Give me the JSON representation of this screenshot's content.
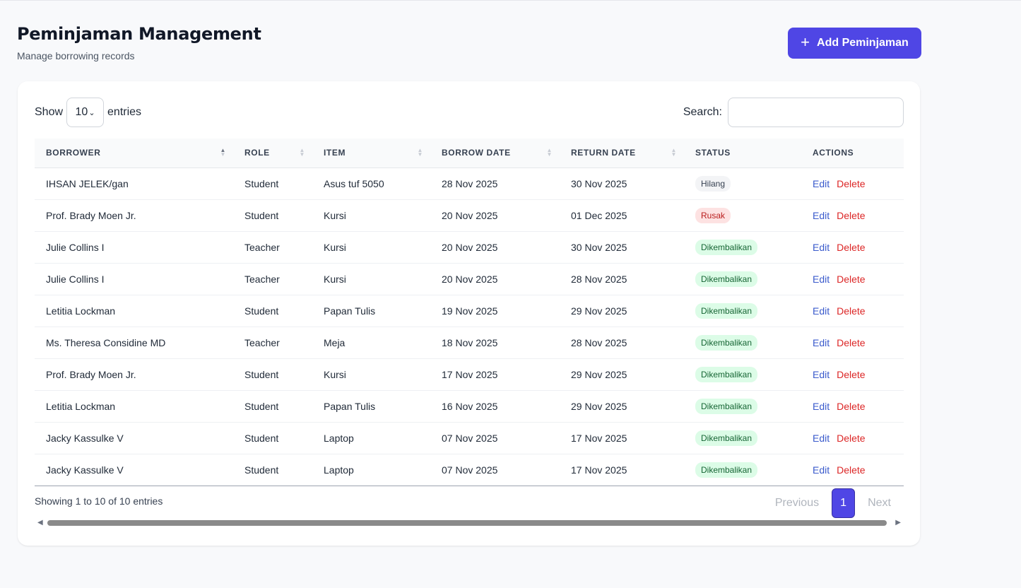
{
  "page": {
    "title": "Peminjaman Management",
    "subtitle": "Manage borrowing records",
    "add_button_label": "Add Peminjaman",
    "add_button_icon": "plus-icon"
  },
  "controls": {
    "show_label": "Show",
    "entries_value": "10",
    "entries_label": "entries",
    "search_label": "Search:",
    "search_value": ""
  },
  "table": {
    "columns": [
      "BORROWER",
      "ROLE",
      "ITEM",
      "BORROW DATE",
      "RETURN DATE",
      "STATUS",
      "ACTIONS"
    ],
    "sorted_column": "BORROWER",
    "sort_direction": "ascending",
    "rows": [
      {
        "borrower": "IHSAN JELEK/gan",
        "role": "Student",
        "item": "Asus tuf 5050",
        "borrow_date": "28 Nov 2025",
        "return_date": "30 Nov 2025",
        "status": "Hilang",
        "edit": "Edit",
        "delete": "Delete"
      },
      {
        "borrower": "Prof. Brady Moen Jr.",
        "role": "Student",
        "item": "Kursi",
        "borrow_date": "20 Nov 2025",
        "return_date": "01 Dec 2025",
        "status": "Rusak",
        "edit": "Edit",
        "delete": "Delete"
      },
      {
        "borrower": "Julie Collins I",
        "role": "Teacher",
        "item": "Kursi",
        "borrow_date": "20 Nov 2025",
        "return_date": "30 Nov 2025",
        "status": "Dikembalikan",
        "edit": "Edit",
        "delete": "Delete"
      },
      {
        "borrower": "Julie Collins I",
        "role": "Teacher",
        "item": "Kursi",
        "borrow_date": "20 Nov 2025",
        "return_date": "28 Nov 2025",
        "status": "Dikembalikan",
        "edit": "Edit",
        "delete": "Delete"
      },
      {
        "borrower": "Letitia Lockman",
        "role": "Student",
        "item": "Papan Tulis",
        "borrow_date": "19 Nov 2025",
        "return_date": "29 Nov 2025",
        "status": "Dikembalikan",
        "edit": "Edit",
        "delete": "Delete"
      },
      {
        "borrower": "Ms. Theresa Considine MD",
        "role": "Teacher",
        "item": "Meja",
        "borrow_date": "18 Nov 2025",
        "return_date": "28 Nov 2025",
        "status": "Dikembalikan",
        "edit": "Edit",
        "delete": "Delete"
      },
      {
        "borrower": "Prof. Brady Moen Jr.",
        "role": "Student",
        "item": "Kursi",
        "borrow_date": "17 Nov 2025",
        "return_date": "29 Nov 2025",
        "status": "Dikembalikan",
        "edit": "Edit",
        "delete": "Delete"
      },
      {
        "borrower": "Letitia Lockman",
        "role": "Student",
        "item": "Papan Tulis",
        "borrow_date": "16 Nov 2025",
        "return_date": "29 Nov 2025",
        "status": "Dikembalikan",
        "edit": "Edit",
        "delete": "Delete"
      },
      {
        "borrower": "Jacky Kassulke V",
        "role": "Student",
        "item": "Laptop",
        "borrow_date": "07 Nov 2025",
        "return_date": "17 Nov 2025",
        "status": "Dikembalikan",
        "edit": "Edit",
        "delete": "Delete"
      },
      {
        "borrower": "Jacky Kassulke V",
        "role": "Student",
        "item": "Laptop",
        "borrow_date": "07 Nov 2025",
        "return_date": "17 Nov 2025",
        "status": "Dikembalikan",
        "edit": "Edit",
        "delete": "Delete"
      }
    ]
  },
  "footer": {
    "info": "Showing 1 to 10 of 10 entries",
    "previous_label": "Previous",
    "current_page": "1",
    "next_label": "Next"
  },
  "colors": {
    "accent": "#4f46e5",
    "status_hilang": "#f3f4f6",
    "status_rusak": "#fde2e2",
    "status_dikembalikan": "#dcfce7",
    "edit_link": "#3b5bcc",
    "delete_link": "#dc2626"
  }
}
